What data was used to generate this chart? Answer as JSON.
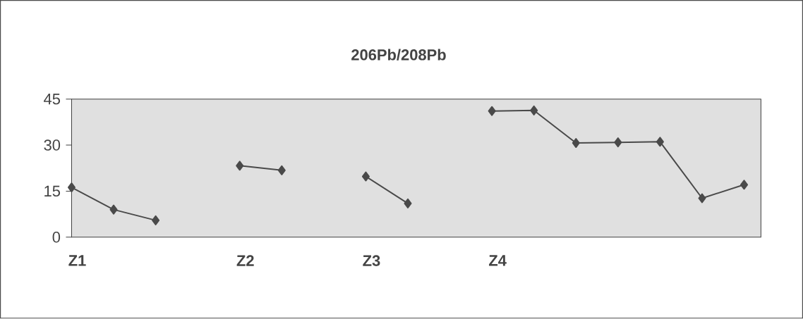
{
  "chart_data": {
    "type": "line",
    "title": "206Pb/208Pb",
    "categories": [
      "Z1",
      null,
      null,
      null,
      "Z2",
      null,
      null,
      "Z3",
      null,
      null,
      "Z4",
      null,
      null,
      null,
      null,
      null,
      null
    ],
    "values": [
      16.2,
      9.0,
      5.5,
      null,
      23.3,
      21.8,
      null,
      19.8,
      11.0,
      null,
      41.1,
      41.3,
      30.7,
      30.9,
      31.1,
      12.7,
      17.1
    ],
    "color": "#4a4a4a",
    "marker": "diamond",
    "line_style": "solid",
    "ylim": [
      0,
      45
    ],
    "yticks": [
      0,
      15,
      30,
      45
    ],
    "grid": false
  }
}
